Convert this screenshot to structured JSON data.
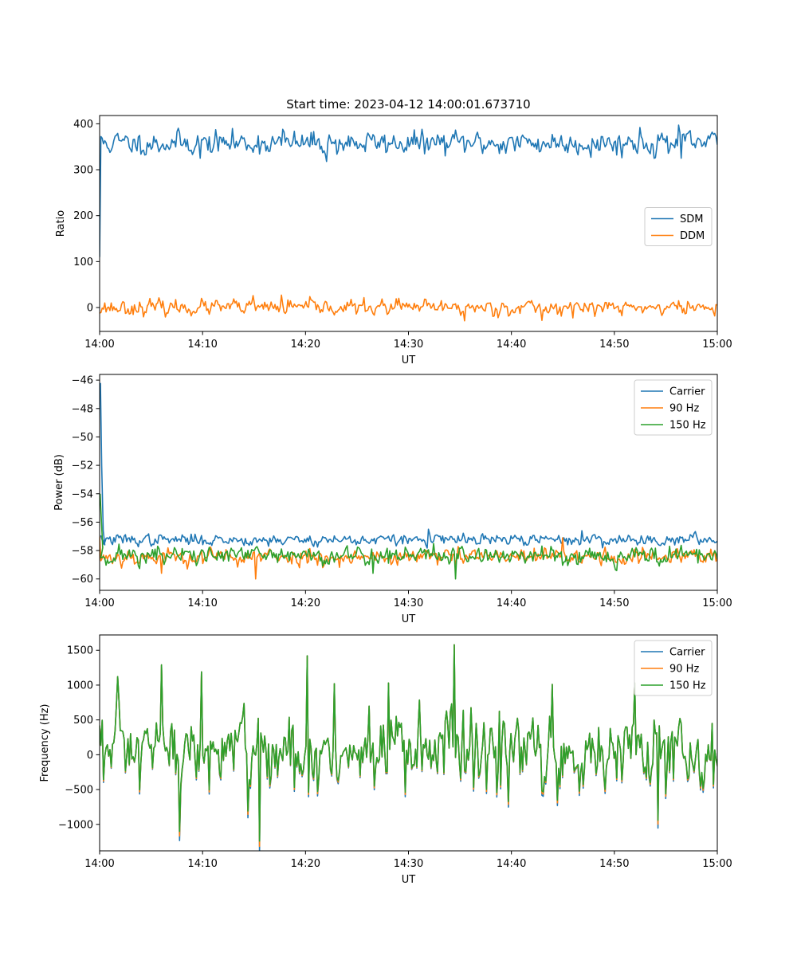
{
  "figure": {
    "title": "Start time: 2023-04-12 14:00:01.673710"
  },
  "chart_data": [
    {
      "type": "line",
      "title": "Start time: 2023-04-12 14:00:01.673710",
      "xlabel": "UT",
      "ylabel": "Ratio",
      "xticks": [
        "14:00",
        "14:10",
        "14:20",
        "14:30",
        "14:40",
        "14:50",
        "15:00"
      ],
      "xlim_minutes": [
        0,
        60
      ],
      "yticks": [
        0,
        100,
        200,
        300,
        400
      ],
      "ylim": [
        -52,
        418
      ],
      "legend_loc": "center-right",
      "series": [
        {
          "name": "SDM",
          "color": "#1f77b4",
          "seed": 11,
          "first_value": 110,
          "base": 358,
          "noise": 14,
          "clip": [
            315,
            398
          ],
          "peaks": [
            [
              56.2,
              397
            ],
            [
              52.5,
              392
            ],
            [
              17.8,
              388
            ],
            [
              9.8,
              325
            ],
            [
              22.0,
              318
            ],
            [
              56.5,
              325
            ]
          ]
        },
        {
          "name": "DDM",
          "color": "#ff7f0e",
          "seed": 23,
          "first_value": -12,
          "base": 0,
          "noise": 9,
          "clip": [
            -30,
            28
          ],
          "peaks": [
            [
              14.9,
              26
            ],
            [
              17.6,
              27
            ],
            [
              35.4,
              -29
            ],
            [
              43.0,
              -28
            ],
            [
              29.0,
              20
            ]
          ]
        }
      ]
    },
    {
      "type": "line",
      "xlabel": "UT",
      "ylabel": "Power (dB)",
      "xticks": [
        "14:00",
        "14:10",
        "14:20",
        "14:30",
        "14:40",
        "14:50",
        "15:00"
      ],
      "xlim_minutes": [
        0,
        60
      ],
      "yticks": [
        -60,
        -58,
        -56,
        -54,
        -52,
        -50,
        -48,
        -46
      ],
      "ylim": [
        -60.8,
        -45.6
      ],
      "legend_loc": "top-right",
      "series": [
        {
          "name": "Carrier",
          "color": "#1f77b4",
          "seed": 37,
          "first_value": -46.2,
          "base": -57.25,
          "noise": 0.22,
          "clip": [
            -58.0,
            -56.4
          ],
          "spike": [
            [
              0.08,
              -46.2
            ],
            [
              0.2,
              -52.0
            ],
            [
              0.35,
              -56.6
            ],
            [
              0.5,
              -57.6
            ]
          ],
          "peaks": [
            [
              31.9,
              -56.5
            ],
            [
              46.9,
              -56.6
            ]
          ]
        },
        {
          "name": "90 Hz",
          "color": "#ff7f0e",
          "seed": 53,
          "first_value": -57.0,
          "base": -58.45,
          "noise": 0.33,
          "clip": [
            -60.0,
            -57.1
          ],
          "peaks": [
            [
              15.1,
              -60.0
            ],
            [
              6.0,
              -59.6
            ],
            [
              45.0,
              -57.1
            ]
          ]
        },
        {
          "name": "150 Hz",
          "color": "#2ca02c",
          "seed": 71,
          "first_value": -54.0,
          "base": -58.35,
          "noise": 0.38,
          "clip": [
            -60.0,
            -57.0
          ],
          "spike": [
            [
              0.05,
              -54.0
            ],
            [
              0.3,
              -57.8
            ]
          ],
          "peaks": [
            [
              34.6,
              -60.0
            ],
            [
              26.5,
              -59.6
            ],
            [
              32.5,
              -57.5
            ]
          ]
        }
      ]
    },
    {
      "type": "line",
      "xlabel": "UT",
      "ylabel": "Frequency (Hz)",
      "xticks": [
        "14:00",
        "14:10",
        "14:20",
        "14:30",
        "14:40",
        "14:50",
        "15:00"
      ],
      "xlim_minutes": [
        0,
        60
      ],
      "yticks": [
        -1000,
        -500,
        0,
        500,
        1000,
        1500
      ],
      "ylim": [
        -1380,
        1720
      ],
      "legend_loc": "top-right",
      "base_series": {
        "seed": 97,
        "base": 20,
        "noise": 330,
        "clip": [
          -1250,
          1600
        ],
        "peaks": [
          [
            34.5,
            1580
          ],
          [
            20.2,
            1420
          ],
          [
            6.0,
            1290
          ],
          [
            15.5,
            -1240
          ],
          [
            7.8,
            -1100
          ],
          [
            9.9,
            1190
          ],
          [
            22.8,
            1020
          ],
          [
            28.0,
            1030
          ],
          [
            52.0,
            1030
          ],
          [
            54.2,
            -940
          ],
          [
            44.0,
            1010
          ]
        ]
      },
      "series": [
        {
          "name": "Carrier",
          "color": "#1f77b4",
          "neg_scale": 1.12,
          "pos_scale": 1.0
        },
        {
          "name": "90 Hz",
          "color": "#ff7f0e",
          "neg_scale": 1.06,
          "pos_scale": 1.0
        },
        {
          "name": "150 Hz",
          "color": "#2ca02c",
          "neg_scale": 1.0,
          "pos_scale": 1.0
        }
      ]
    }
  ]
}
